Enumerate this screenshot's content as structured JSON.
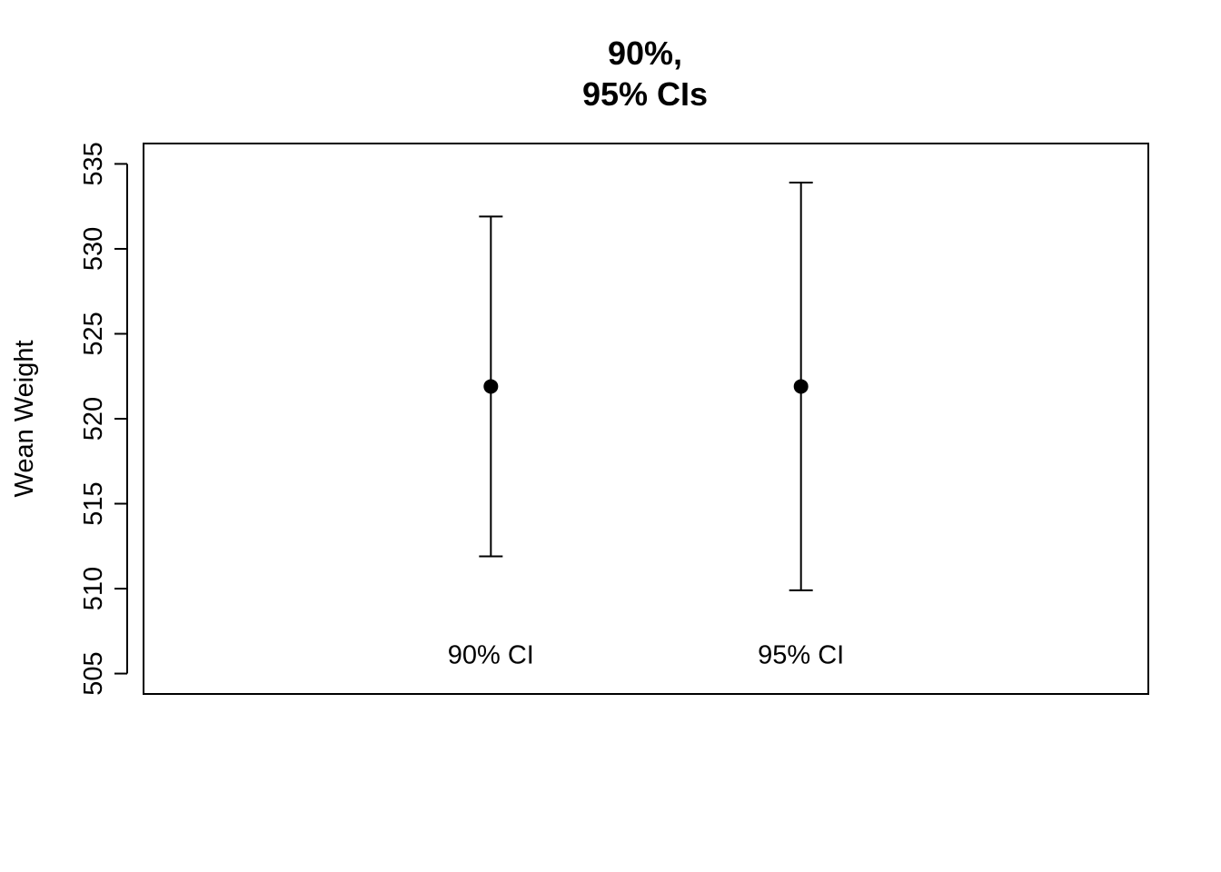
{
  "chart_data": {
    "type": "scatter",
    "title_lines": [
      "90%,",
      "95% CIs"
    ],
    "xlabel": "",
    "ylabel": "Wean Weight",
    "ylim": [
      503.8,
      536.2
    ],
    "yticks": [
      505,
      510,
      515,
      520,
      525,
      530,
      535
    ],
    "categories": [
      "90% CI",
      "95% CI"
    ],
    "x": [
      1,
      2
    ],
    "xlim": [
      -0.12,
      3.12
    ],
    "estimate": [
      521.9,
      521.9
    ],
    "lower": [
      511.9,
      509.9
    ],
    "upper": [
      531.9,
      533.9
    ],
    "category_label_y": 506
  }
}
